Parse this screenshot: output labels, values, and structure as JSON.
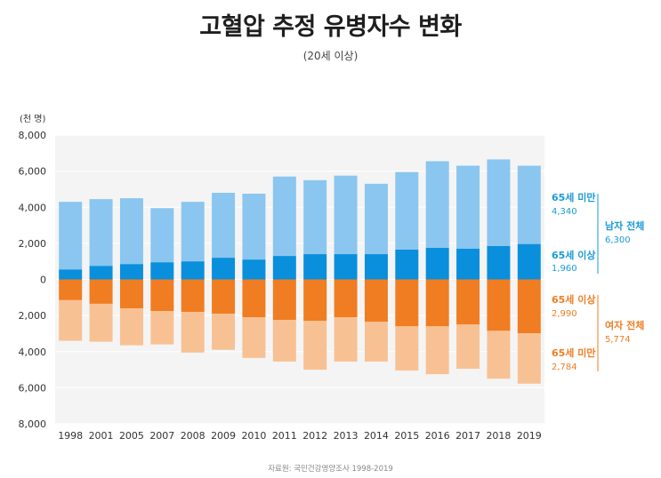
{
  "chart_data": {
    "type": "bar",
    "title": "고혈압 추정 유병자수 변화",
    "subtitle": "(20세 이상)",
    "unit_label": "(천 명)",
    "source": "자료원: 국민건강영양조사 1998-2019",
    "categories": [
      "1998",
      "2001",
      "2005",
      "2007",
      "2008",
      "2009",
      "2010",
      "2011",
      "2012",
      "2013",
      "2014",
      "2015",
      "2016",
      "2017",
      "2018",
      "2019"
    ],
    "y_ticks": [
      "8,000",
      "6,000",
      "4,000",
      "2,000",
      "0",
      "2,000",
      "4,000",
      "6,000",
      "8,000"
    ],
    "ylim": [
      -8000,
      8000
    ],
    "series": [
      {
        "name": "남자 65세 이상",
        "group": "male",
        "values": [
          550,
          750,
          850,
          950,
          1000,
          1200,
          1100,
          1300,
          1400,
          1400,
          1400,
          1650,
          1750,
          1700,
          1850,
          1960
        ]
      },
      {
        "name": "남자 65세 미만",
        "group": "male",
        "values": [
          3750,
          3700,
          3650,
          3000,
          3300,
          3600,
          3650,
          4400,
          4100,
          4350,
          3900,
          4300,
          4800,
          4600,
          4800,
          4340
        ]
      },
      {
        "name": "여자 65세 이상",
        "group": "female",
        "values": [
          1150,
          1350,
          1600,
          1750,
          1800,
          1900,
          2100,
          2250,
          2300,
          2100,
          2350,
          2600,
          2600,
          2500,
          2850,
          2990
        ]
      },
      {
        "name": "여자 65세 미만",
        "group": "female",
        "values": [
          2250,
          2100,
          2050,
          1850,
          2250,
          2000,
          2250,
          2300,
          2700,
          2450,
          2200,
          2450,
          2650,
          2450,
          2650,
          2784
        ]
      }
    ],
    "annotations": {
      "male_under65_label": "65세 미만",
      "male_under65_value": "4,340",
      "male_over65_label": "65세 이상",
      "male_over65_value": "1,960",
      "male_total_label": "남자 전체",
      "male_total_value": "6,300",
      "female_over65_label": "65세 이상",
      "female_over65_value": "2,990",
      "female_under65_label": "65세 미만",
      "female_under65_value": "2,784",
      "female_total_label": "여자 전체",
      "female_total_value": "5,774"
    },
    "colors": {
      "male_under65": "#8ac6ef",
      "male_over65": "#0a8fdc",
      "female_over65": "#f07d22",
      "female_under65": "#f8c193",
      "male_text": "#1a9ad9",
      "female_text": "#ef7d22",
      "plot_bg": "#f4f4f4"
    }
  }
}
